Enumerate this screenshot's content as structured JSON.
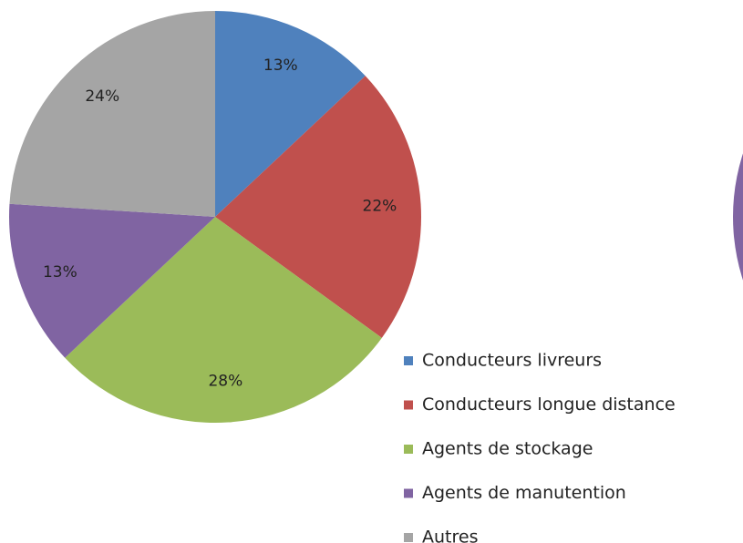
{
  "chart_data": {
    "type": "pie",
    "categories": [
      "Conducteurs livreurs",
      "Conducteurs longue distance",
      "Agents de stockage",
      "Agents de manutention",
      "Autres"
    ],
    "values": [
      13,
      22,
      28,
      13,
      24
    ],
    "value_labels": [
      "13%",
      "22%",
      "28%",
      "13%",
      "24%"
    ],
    "colors": [
      "#4f81bd",
      "#c0504d",
      "#9bbb59",
      "#8064a2",
      "#a5a5a5"
    ],
    "legend": "right"
  }
}
